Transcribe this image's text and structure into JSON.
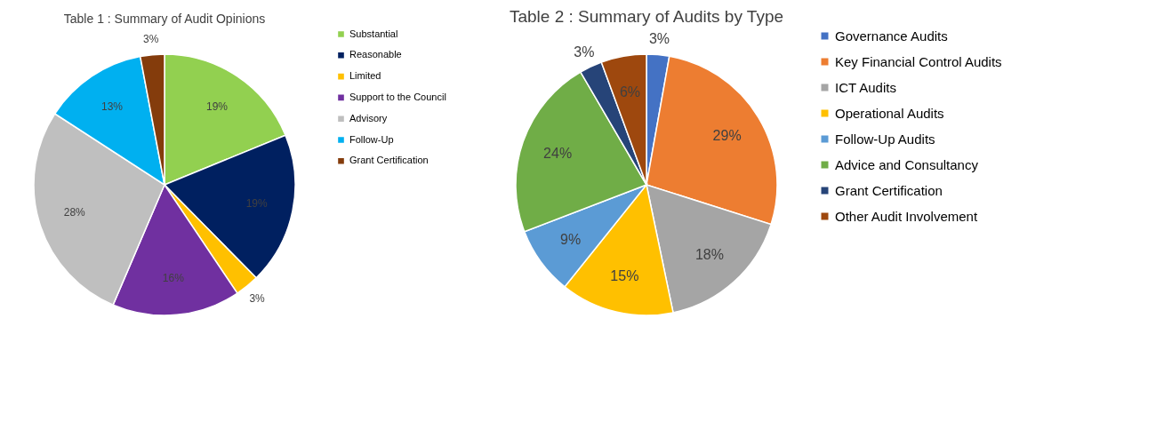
{
  "chart_data": [
    {
      "type": "pie",
      "title": "Table 1 : Summary of Audit Opinions",
      "categories": [
        "Substantial",
        "Reasonable",
        "Limited",
        "Support to the Council",
        "Advisory",
        "Follow-Up",
        "Grant Certification"
      ],
      "values": [
        19,
        19,
        3,
        16,
        28,
        13,
        3
      ],
      "value_labels": [
        "19%",
        "19%",
        "3%",
        "16%",
        "28%",
        "13%",
        "3%"
      ],
      "colors": [
        "#92d050",
        "#002060",
        "#ffc000",
        "#7030a0",
        "#bfbfbf",
        "#00b0f0",
        "#843c0c"
      ],
      "legend": "right"
    },
    {
      "type": "pie",
      "title": "Table 2 : Summary of Audits by Type",
      "categories": [
        "Governance Audits",
        "Key Financial Control Audits",
        "ICT Audits",
        "Operational Audits",
        "Follow-Up Audits",
        "Advice and Consultancy",
        "Grant Certification",
        "Other Audit Involvement"
      ],
      "values": [
        3,
        29,
        18,
        15,
        9,
        24,
        3,
        6
      ],
      "value_labels": [
        "3%",
        "29%",
        "18%",
        "15%",
        "9%",
        "24%",
        "3%",
        "6%"
      ],
      "colors": [
        "#4472c4",
        "#ed7d31",
        "#a5a5a5",
        "#ffc000",
        "#5b9bd5",
        "#70ad47",
        "#264478",
        "#9e480e"
      ],
      "legend": "right"
    }
  ]
}
